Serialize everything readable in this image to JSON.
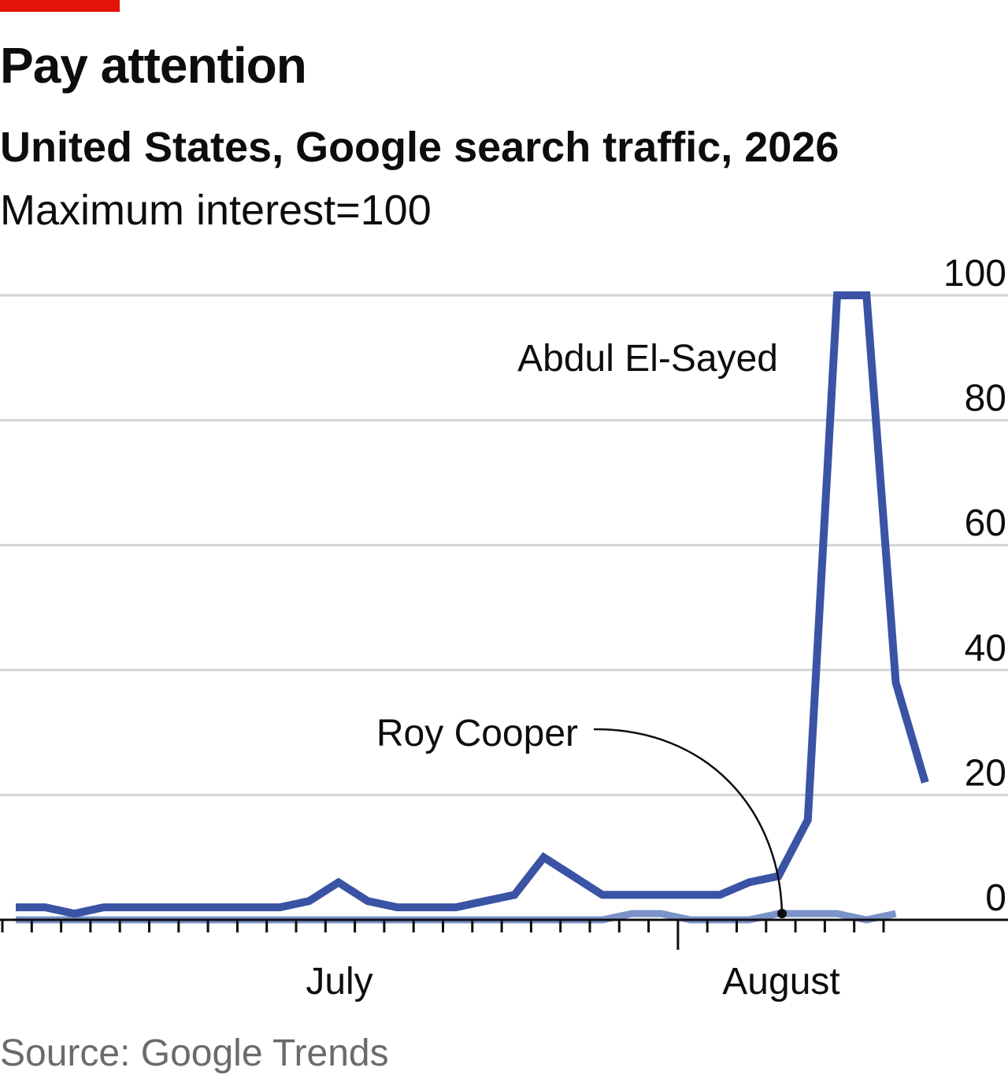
{
  "header": {
    "title": "Pay attention",
    "subtitle": "United States, Google search traffic, 2026",
    "unit": "Maximum interest=100"
  },
  "footer": {
    "source": "Source: Google Trends"
  },
  "colors": {
    "brand_red": "#e3120b",
    "abdul": "#3a53a4",
    "roy": "#7b93c9",
    "grid": "#d3d3d3",
    "axis": "#0d0d0d"
  },
  "chart_data": {
    "type": "line",
    "y_axis": {
      "range": [
        0,
        100
      ],
      "ticks": [
        0,
        20,
        40,
        60,
        80,
        100
      ],
      "position": "right"
    },
    "x_axis": {
      "labels": [
        "July",
        "August"
      ]
    },
    "grid": true,
    "series": [
      {
        "name": "Abdul El-Sayed",
        "values": [
          2,
          2,
          1,
          2,
          2,
          2,
          2,
          2,
          2,
          2,
          3,
          6,
          3,
          2,
          2,
          2,
          3,
          4,
          10,
          7,
          4,
          4,
          4,
          4,
          4,
          6,
          7,
          16,
          100,
          100,
          38,
          22
        ]
      },
      {
        "name": "Roy Cooper",
        "values": [
          0,
          0,
          0,
          0,
          0,
          0,
          0,
          0,
          0,
          0,
          0,
          0,
          0,
          0,
          0,
          0,
          0,
          0,
          0,
          0,
          0,
          1,
          1,
          0,
          0,
          0,
          1,
          1,
          1,
          0,
          1
        ]
      }
    ]
  }
}
